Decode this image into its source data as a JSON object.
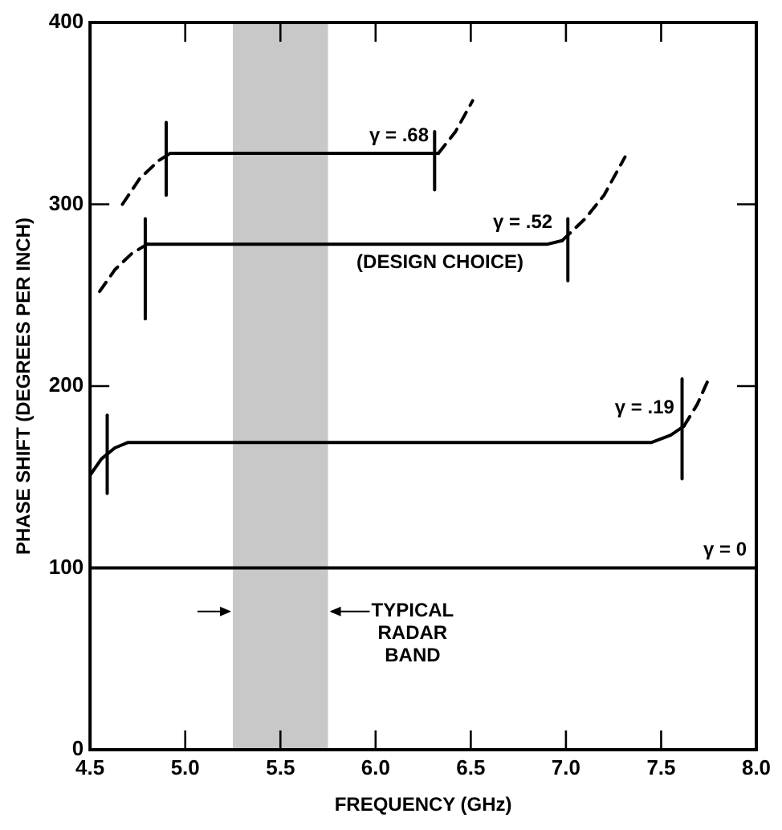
{
  "chart_data": {
    "type": "line",
    "xlabel": "FREQUENCY (GHz)",
    "ylabel": "PHASE SHIFT (DEGREES PER INCH)",
    "xlim": [
      4.5,
      8.0
    ],
    "xticks": [
      4.5,
      {
        "value": 5,
        "label": "5.0"
      },
      5.5,
      {
        "value": 6,
        "label": "6.0"
      },
      6.5,
      {
        "value": 7,
        "label": "7.0"
      },
      7.5,
      {
        "value": 8,
        "label": "8.0"
      }
    ],
    "ylim": [
      0,
      400
    ],
    "yticks": [
      0,
      100,
      200,
      300,
      400
    ],
    "grid": false,
    "legend": false,
    "marker": "none",
    "series": [
      {
        "name": "γ = .68",
        "color": "#000000",
        "line_style": "solid",
        "x": [
          4.92,
          6.33
        ],
        "values": [
          328,
          328
        ]
      },
      {
        "color": "#000000",
        "line_style": "dashed",
        "x": [
          4.67,
          4.76,
          4.86,
          4.92
        ],
        "values": [
          300,
          314,
          324,
          328
        ]
      },
      {
        "color": "#000000",
        "line_style": "dashed",
        "x": [
          6.33,
          6.42,
          6.51
        ],
        "values": [
          328,
          340,
          357
        ]
      },
      {
        "name": "γ = .52",
        "color": "#000000",
        "line_style": "solid",
        "x": [
          4.8,
          6.9,
          6.98
        ],
        "values": [
          278,
          278,
          280
        ]
      },
      {
        "color": "#000000",
        "line_style": "dashed",
        "x": [
          4.55,
          4.63,
          4.72,
          4.8
        ],
        "values": [
          252,
          264,
          273,
          278
        ]
      },
      {
        "color": "#000000",
        "line_style": "dashed",
        "x": [
          6.98,
          7.1,
          7.2,
          7.31
        ],
        "values": [
          280,
          292,
          305,
          326
        ]
      },
      {
        "name": "γ = .19",
        "color": "#000000",
        "line_style": "solid",
        "x": [
          4.5,
          4.56,
          4.63,
          4.7,
          7.45,
          7.55,
          7.62
        ],
        "values": [
          151,
          160,
          166,
          169,
          169,
          173,
          178
        ]
      },
      {
        "color": "#000000",
        "line_style": "dashed",
        "x": [
          7.62,
          7.69,
          7.75
        ],
        "values": [
          178,
          190,
          204
        ]
      },
      {
        "name": "γ = 0",
        "color": "#000000",
        "line_style": "solid",
        "x": [
          4.5,
          8.0
        ],
        "values": [
          100,
          100
        ]
      },
      {
        "color": "#000000",
        "line_style": "solid",
        "x": [
          4.9,
          4.9
        ],
        "values": [
          305,
          345
        ]
      },
      {
        "color": "#000000",
        "line_style": "solid",
        "x": [
          6.31,
          6.31
        ],
        "values": [
          308,
          340
        ]
      },
      {
        "color": "#000000",
        "line_style": "solid",
        "x": [
          4.79,
          4.79
        ],
        "values": [
          237,
          292
        ]
      },
      {
        "color": "#000000",
        "line_style": "solid",
        "x": [
          7.01,
          7.01
        ],
        "values": [
          258,
          292
        ]
      },
      {
        "color": "#000000",
        "line_style": "solid",
        "x": [
          4.59,
          4.59
        ],
        "values": [
          141,
          184
        ]
      },
      {
        "color": "#000000",
        "line_style": "solid",
        "x": [
          7.61,
          7.61
        ],
        "values": [
          149,
          204
        ]
      }
    ],
    "bands": [
      {
        "axis": "x",
        "from": 5.25,
        "to": 5.75,
        "label": "TYPICAL RADAR BAND",
        "color": "#c8c8c8"
      }
    ],
    "annotations": [
      "(DESIGN CHOICE)"
    ]
  }
}
